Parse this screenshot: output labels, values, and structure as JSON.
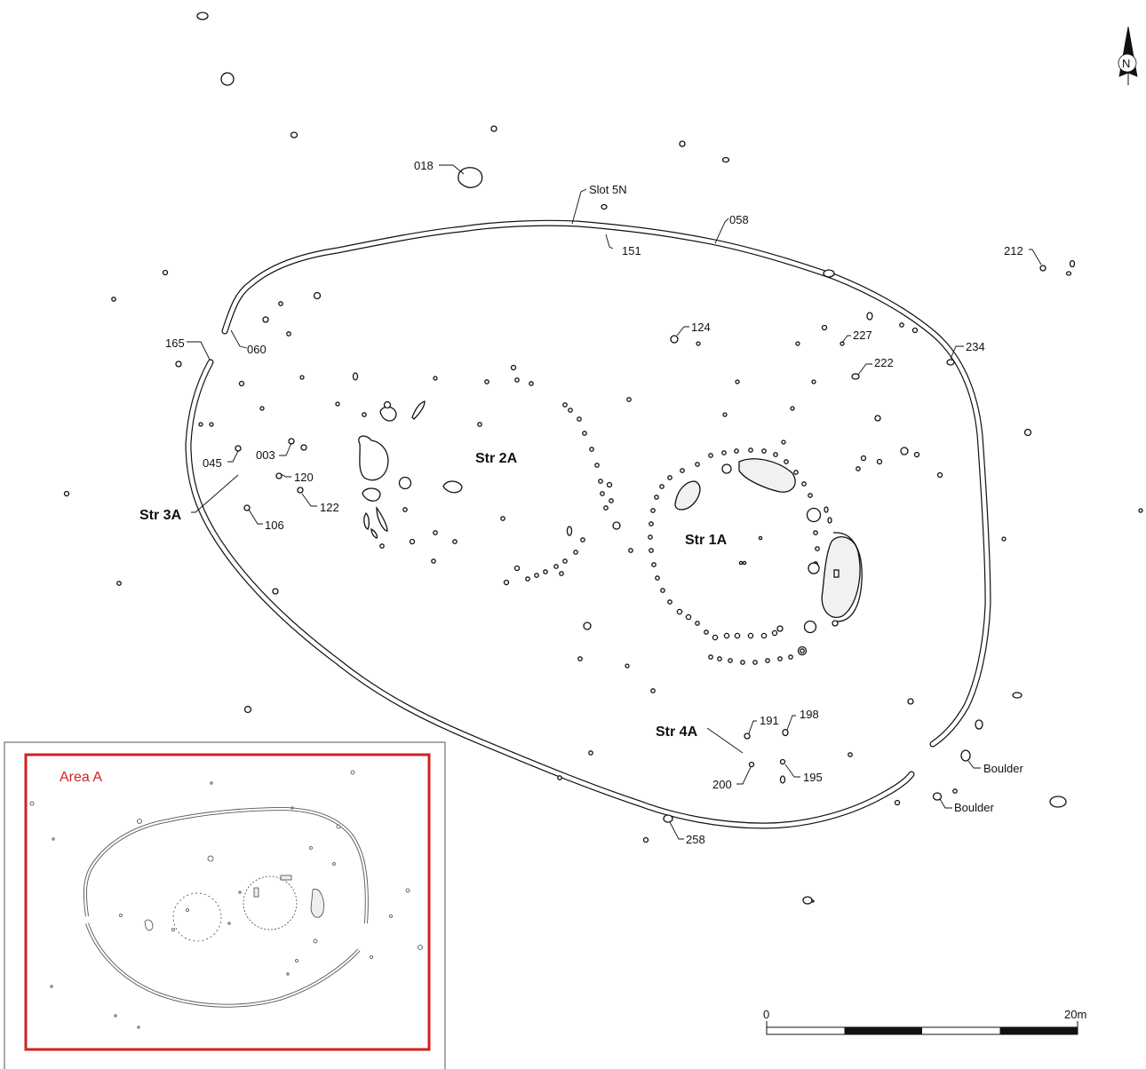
{
  "inset": {
    "title": "Area A",
    "frame_color": "#d32020"
  },
  "north_arrow": {
    "label": "N"
  },
  "scale_bar": {
    "start_label": "0",
    "end_label": "20m",
    "segments": 4
  },
  "structures": [
    {
      "id": "str1a",
      "label": "Str 1A"
    },
    {
      "id": "str2a",
      "label": "Str 2A"
    },
    {
      "id": "str3a",
      "label": "Str 3A"
    },
    {
      "id": "str4a",
      "label": "Str 4A"
    }
  ],
  "features": [
    "018",
    "Slot 5N",
    "058",
    "151",
    "212",
    "060",
    "165",
    "124",
    "227",
    "234",
    "222",
    "045",
    "003",
    "120",
    "122",
    "106",
    "191",
    "198",
    "200",
    "195",
    "258",
    "Boulder",
    "Boulder"
  ]
}
